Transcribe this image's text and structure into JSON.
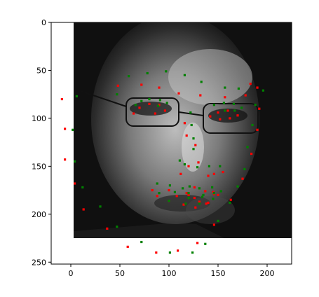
{
  "chart_data": {
    "type": "scatter",
    "title": "",
    "xlabel": "",
    "ylabel": "",
    "xlim": [
      -20,
      225
    ],
    "ylim": [
      252,
      0
    ],
    "y_inverted": true,
    "xticks": [
      0,
      50,
      100,
      150,
      200
    ],
    "yticks": [
      0,
      50,
      100,
      150,
      200,
      250
    ],
    "background_image": {
      "description": "grayscale face photo",
      "extent_x": [
        0,
        225
      ],
      "extent_y": [
        0,
        224
      ]
    },
    "series": [
      {
        "color": "#ff0000",
        "points": [
          [
            -9,
            80
          ],
          [
            -6,
            111
          ],
          [
            -6,
            143
          ],
          [
            4,
            168
          ],
          [
            13,
            195
          ],
          [
            37,
            215
          ],
          [
            58,
            234
          ],
          [
            87,
            240
          ],
          [
            109,
            238
          ],
          [
            129,
            230
          ],
          [
            146,
            211
          ],
          [
            163,
            185
          ],
          [
            175,
            163
          ],
          [
            184,
            137
          ],
          [
            190,
            112
          ],
          [
            192,
            90
          ],
          [
            190,
            68
          ],
          [
            48,
            66
          ],
          [
            72,
            65
          ],
          [
            90,
            68
          ],
          [
            110,
            74
          ],
          [
            132,
            76
          ],
          [
            157,
            78
          ],
          [
            178,
            76
          ],
          [
            183,
            64
          ],
          [
            116,
            105
          ],
          [
            118,
            118
          ],
          [
            127,
            128
          ],
          [
            130,
            146
          ],
          [
            120,
            150
          ],
          [
            112,
            158
          ],
          [
            140,
            160
          ],
          [
            146,
            158
          ],
          [
            155,
            156
          ],
          [
            64,
            95
          ],
          [
            70,
            89
          ],
          [
            80,
            85
          ],
          [
            90,
            86
          ],
          [
            96,
            92
          ],
          [
            86,
            95
          ],
          [
            142,
            98
          ],
          [
            150,
            94
          ],
          [
            160,
            92
          ],
          [
            170,
            97
          ],
          [
            162,
            100
          ],
          [
            152,
            101
          ],
          [
            83,
            175
          ],
          [
            100,
            175
          ],
          [
            118,
            178
          ],
          [
            126,
            172
          ],
          [
            137,
            176
          ],
          [
            145,
            177
          ],
          [
            150,
            180
          ],
          [
            138,
            189
          ],
          [
            127,
            193
          ],
          [
            115,
            190
          ],
          [
            100,
            186
          ],
          [
            88,
            181
          ],
          [
            108,
            181
          ],
          [
            126,
            183
          ],
          [
            140,
            188
          ],
          [
            146,
            179
          ],
          [
            131,
            187
          ],
          [
            120,
            180
          ]
        ]
      },
      {
        "color": "#008000",
        "points": [
          [
            2,
            112
          ],
          [
            4,
            145
          ],
          [
            12,
            172
          ],
          [
            30,
            192
          ],
          [
            47,
            213
          ],
          [
            72,
            229
          ],
          [
            101,
            240
          ],
          [
            124,
            240
          ],
          [
            137,
            231
          ],
          [
            150,
            207
          ],
          [
            162,
            188
          ],
          [
            170,
            171
          ],
          [
            177,
            153
          ],
          [
            180,
            130
          ],
          [
            185,
            107
          ],
          [
            188,
            86
          ],
          [
            196,
            71
          ],
          [
            6,
            77
          ],
          [
            47,
            75
          ],
          [
            59,
            56
          ],
          [
            78,
            53
          ],
          [
            97,
            51
          ],
          [
            116,
            55
          ],
          [
            133,
            62
          ],
          [
            157,
            68
          ],
          [
            171,
            69
          ],
          [
            122,
            94
          ],
          [
            123,
            107
          ],
          [
            125,
            121
          ],
          [
            125,
            132
          ],
          [
            111,
            144
          ],
          [
            116,
            148
          ],
          [
            129,
            151
          ],
          [
            141,
            150
          ],
          [
            152,
            150
          ],
          [
            66,
            86
          ],
          [
            72,
            82
          ],
          [
            80,
            80
          ],
          [
            91,
            81
          ],
          [
            98,
            84
          ],
          [
            89,
            87
          ],
          [
            146,
            86
          ],
          [
            156,
            84
          ],
          [
            166,
            85
          ],
          [
            174,
            89
          ],
          [
            167,
            92
          ],
          [
            157,
            92
          ],
          [
            88,
            168
          ],
          [
            101,
            170
          ],
          [
            114,
            173
          ],
          [
            121,
            171
          ],
          [
            131,
            173
          ],
          [
            144,
            172
          ],
          [
            153,
            176
          ],
          [
            145,
            184
          ],
          [
            131,
            189
          ],
          [
            117,
            189
          ],
          [
            100,
            186
          ],
          [
            90,
            178
          ],
          [
            106,
            177
          ],
          [
            120,
            178
          ],
          [
            135,
            180
          ],
          [
            146,
            178
          ],
          [
            134,
            182
          ],
          [
            120,
            183
          ]
        ]
      }
    ]
  }
}
